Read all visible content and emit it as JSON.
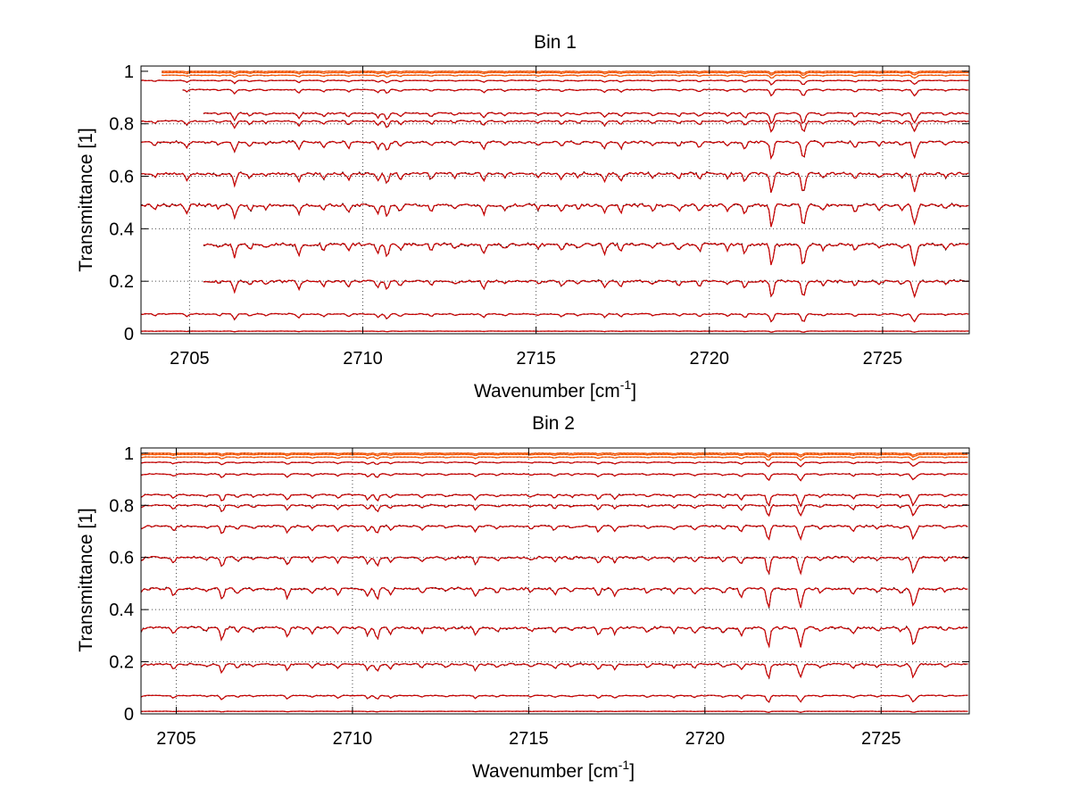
{
  "figure": {
    "panels": [
      {
        "title": "Bin 1",
        "xlabel_main": "Wavenumber [cm",
        "xlabel_sup": "-1",
        "xlabel_end": "]",
        "ylabel": "Transmittance [1]"
      },
      {
        "title": "Bin 2",
        "xlabel_main": "Wavenumber [cm",
        "xlabel_sup": "-1",
        "xlabel_end": "]",
        "ylabel": "Transmittance [1]"
      }
    ]
  },
  "chart_data": [
    {
      "type": "line",
      "title": "Bin 1",
      "xlabel": "Wavenumber [cm-1]",
      "ylabel": "Transmittance [1]",
      "xlim": [
        2703.6,
        2727.5
      ],
      "ylim": [
        0,
        1.02
      ],
      "xticks": [
        2705,
        2710,
        2715,
        2720,
        2725
      ],
      "yticks": [
        0,
        0.2,
        0.4,
        0.6,
        0.8,
        1
      ],
      "yticklabels": [
        "0",
        "0.2",
        "0.4",
        "0.6",
        "0.8",
        "1"
      ],
      "grid": true,
      "legend": "none",
      "line_colors": {
        "measured": "#000000",
        "fitted": "#cc0000",
        "top": "#ff5500"
      },
      "traces": [
        {
          "level": 1.0,
          "x_start": 2704.2,
          "depth": 0.004
        },
        {
          "level": 0.995,
          "x_start": 2704.2,
          "depth": 0.005
        },
        {
          "level": 0.985,
          "x_start": 2704.2,
          "depth": 0.006
        },
        {
          "level": 0.965,
          "x_start": 2703.6,
          "depth": 0.008
        },
        {
          "level": 0.93,
          "x_start": 2704.8,
          "depth": 0.012
        },
        {
          "level": 0.84,
          "x_start": 2705.4,
          "depth": 0.02
        },
        {
          "level": 0.81,
          "x_start": 2703.6,
          "depth": 0.02
        },
        {
          "level": 0.73,
          "x_start": 2703.6,
          "depth": 0.03
        },
        {
          "level": 0.61,
          "x_start": 2703.6,
          "depth": 0.035
        },
        {
          "level": 0.49,
          "x_start": 2703.6,
          "depth": 0.04
        },
        {
          "level": 0.34,
          "x_start": 2705.4,
          "depth": 0.04
        },
        {
          "level": 0.2,
          "x_start": 2705.4,
          "depth": 0.03
        },
        {
          "level": 0.075,
          "x_start": 2703.6,
          "depth": 0.015
        },
        {
          "level": 0.01,
          "x_start": 2703.6,
          "depth": 0.002
        }
      ]
    },
    {
      "type": "line",
      "title": "Bin 2",
      "xlabel": "Wavenumber [cm-1]",
      "ylabel": "Transmittance [1]",
      "xlim": [
        2704.0,
        2727.5
      ],
      "ylim": [
        0,
        1.02
      ],
      "xticks": [
        2705,
        2710,
        2715,
        2720,
        2725
      ],
      "yticks": [
        0,
        0.2,
        0.4,
        0.6,
        0.8,
        1
      ],
      "yticklabels": [
        "0",
        "0.2",
        "0.4",
        "0.6",
        "0.8",
        "1"
      ],
      "grid": true,
      "legend": "none",
      "line_colors": {
        "measured": "#000000",
        "fitted": "#cc0000",
        "top": "#ff5500"
      },
      "traces": [
        {
          "level": 1.0,
          "x_start": 2704.0,
          "depth": 0.004
        },
        {
          "level": 0.995,
          "x_start": 2704.0,
          "depth": 0.005
        },
        {
          "level": 0.985,
          "x_start": 2704.0,
          "depth": 0.006
        },
        {
          "level": 0.965,
          "x_start": 2704.0,
          "depth": 0.008
        },
        {
          "level": 0.92,
          "x_start": 2704.0,
          "depth": 0.012
        },
        {
          "level": 0.84,
          "x_start": 2704.0,
          "depth": 0.02
        },
        {
          "level": 0.8,
          "x_start": 2704.0,
          "depth": 0.02
        },
        {
          "level": 0.72,
          "x_start": 2704.0,
          "depth": 0.025
        },
        {
          "level": 0.6,
          "x_start": 2704.0,
          "depth": 0.03
        },
        {
          "level": 0.48,
          "x_start": 2704.0,
          "depth": 0.035
        },
        {
          "level": 0.33,
          "x_start": 2704.0,
          "depth": 0.035
        },
        {
          "level": 0.19,
          "x_start": 2704.0,
          "depth": 0.025
        },
        {
          "level": 0.07,
          "x_start": 2704.0,
          "depth": 0.012
        },
        {
          "level": 0.01,
          "x_start": 2704.0,
          "depth": 0.002
        }
      ]
    }
  ]
}
